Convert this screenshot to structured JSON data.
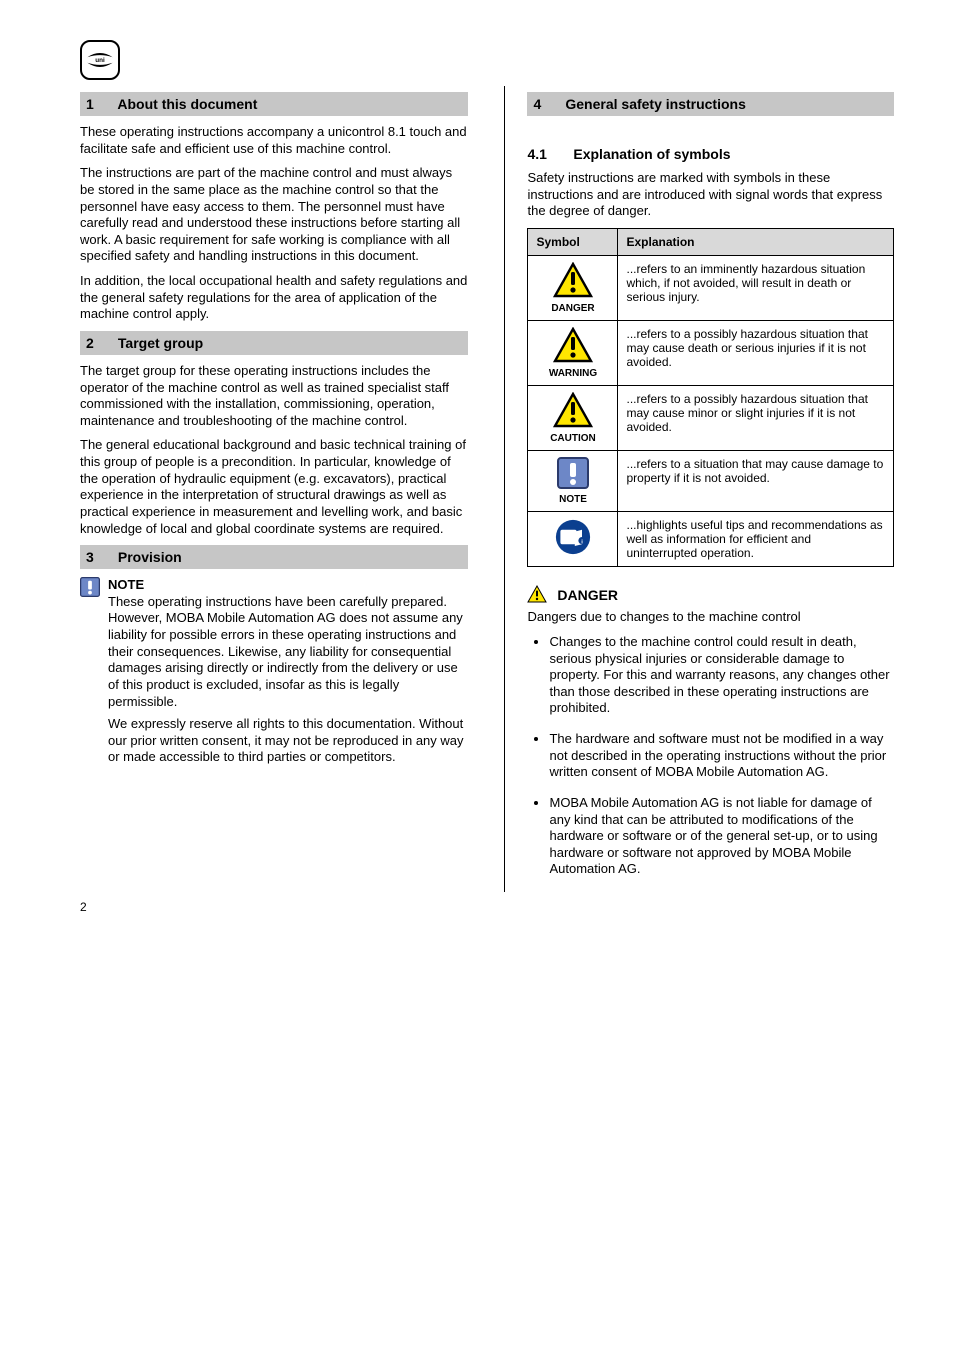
{
  "page_number": "2",
  "left": {
    "sec1": {
      "num": "1",
      "title": "About this document",
      "p1": "These operating instructions accompany a unicontrol 8.1 touch and facilitate safe and efficient use of this machine control.",
      "p2": "The instructions are part of the machine control and must always be stored in the same place as the machine control so that the personnel have easy access to them. The personnel must have carefully read and understood these instructions before starting all work. A basic requirement for safe working is compliance with all specified safety and handling instructions in this document.",
      "p3": "In addition, the local occupational health and safety regulations and the general safety regulations for the area of application of the machine control apply."
    },
    "sec2": {
      "num": "2",
      "title": "Target group",
      "p1": "The target group for these operating instructions includes the operator of the machine control as well as trained specialist staff commissioned with the installation, commissioning, operation, maintenance and troubleshooting of the machine control.",
      "p2": "The general educational background and basic technical training of this group of people is a precondition. In particular, knowledge of the operation of hydraulic equipment (e.g. excavators), practical experience in the interpretation of structural drawings as well as practical experience in measurement and levelling work, and basic knowledge of local and global coordinate systems are required."
    },
    "sec3": {
      "num": "3",
      "title": "Provision",
      "note_label": "NOTE",
      "note_p1": "These operating instructions have been carefully prepared. However, MOBA Mobile Automation AG does not assume any liability for possible errors in these operating instructions and their consequences. Likewise, any liability for consequential damages arising directly or indirectly from the delivery or use of this product is excluded, insofar as this is legally permissible.",
      "note_p2": "We expressly reserve all rights to this documentation. Without our prior written consent, it may not be reproduced in any way or made accessible to third parties or competitors."
    }
  },
  "right": {
    "sec4": {
      "num": "4",
      "title": "General safety instructions",
      "sub_num": "4.1",
      "sub_title": "Explanation of symbols",
      "intro": "Safety instructions are marked with symbols in these instructions and are introduced with signal words that express the degree of danger.",
      "table": {
        "h1": "Symbol",
        "h2": "Explanation",
        "rows": [
          {
            "icon": "warn",
            "word": "DANGER",
            "text": "...refers to an imminently hazardous situation which, if not avoided, will result in death or serious injury."
          },
          {
            "icon": "warn",
            "word": "WARNING",
            "text": "...refers to a possibly hazardous situation that may cause death or serious injuries if it is not avoided."
          },
          {
            "icon": "warn",
            "word": "CAUTION",
            "text": "...refers to a possibly hazardous situation that may cause minor or slight injuries if it is not avoided."
          },
          {
            "icon": "note",
            "word": "NOTE",
            "text": "...refers to a situation that may cause damage to property if it is not avoided."
          },
          {
            "icon": "info",
            "word": "",
            "text": "...highlights useful tips and recommendations as well as information for efficient and uninterrupted operation."
          }
        ]
      },
      "danger_word": "DANGER",
      "danger_sub": "Dangers due to changes to the machine control",
      "bullets": [
        "Changes to the machine control could result in death, serious physical injuries or considerable damage to property. For this and warranty reasons, any changes other than those described in these operating instructions are prohibited.",
        "The hardware and software must not be modified in a way not described in the operating instructions without the prior written consent of MOBA Mobile Automation AG.",
        "MOBA Mobile Automation AG is not liable for damage of any kind that can be attributed to modifications of the hardware or software or of the general set-up, or to using hardware or software not approved by MOBA Mobile Automation AG."
      ]
    }
  },
  "colors": {
    "section_bg": "#c6c6c6",
    "table_header_bg": "#d9d9d9",
    "warn_fill": "#ffe600",
    "warn_stroke": "#000000",
    "warn_sym": "#000000",
    "note_fill": "#6d87c7",
    "note_border": "#2b3a6b",
    "note_sym": "#ffffff",
    "info_fill": "#0b3f8f",
    "info_sym": "#ffffff"
  }
}
